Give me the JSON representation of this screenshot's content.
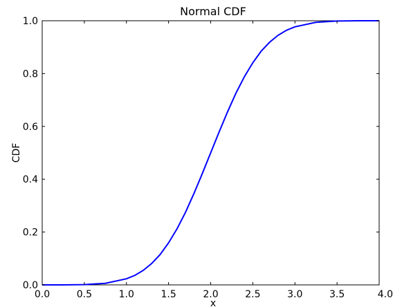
{
  "chart_data": {
    "type": "line",
    "title": "Normal CDF",
    "xlabel": "x",
    "ylabel": "CDF",
    "xlim": [
      0.0,
      4.0
    ],
    "ylim": [
      0.0,
      1.0
    ],
    "x_ticks": [
      "0.0",
      "0.5",
      "1.0",
      "1.5",
      "2.0",
      "2.5",
      "3.0",
      "3.5",
      "4.0"
    ],
    "y_ticks": [
      "0.0",
      "0.2",
      "0.4",
      "0.6",
      "0.8",
      "1.0"
    ],
    "grid": false,
    "series": [
      {
        "color": "#0000ff",
        "x": [
          0.0,
          0.25,
          0.5,
          0.75,
          1.0,
          1.1,
          1.2,
          1.3,
          1.4,
          1.5,
          1.6,
          1.7,
          1.8,
          1.9,
          2.0,
          2.1,
          2.2,
          2.3,
          2.4,
          2.5,
          2.6,
          2.7,
          2.8,
          2.9,
          3.0,
          3.25,
          3.5,
          3.75,
          4.0
        ],
        "y": [
          0.0,
          0.0,
          0.001,
          0.006,
          0.023,
          0.036,
          0.055,
          0.081,
          0.115,
          0.159,
          0.212,
          0.274,
          0.345,
          0.421,
          0.5,
          0.579,
          0.655,
          0.726,
          0.788,
          0.841,
          0.885,
          0.919,
          0.945,
          0.964,
          0.977,
          0.994,
          0.999,
          1.0,
          1.0
        ]
      }
    ]
  }
}
